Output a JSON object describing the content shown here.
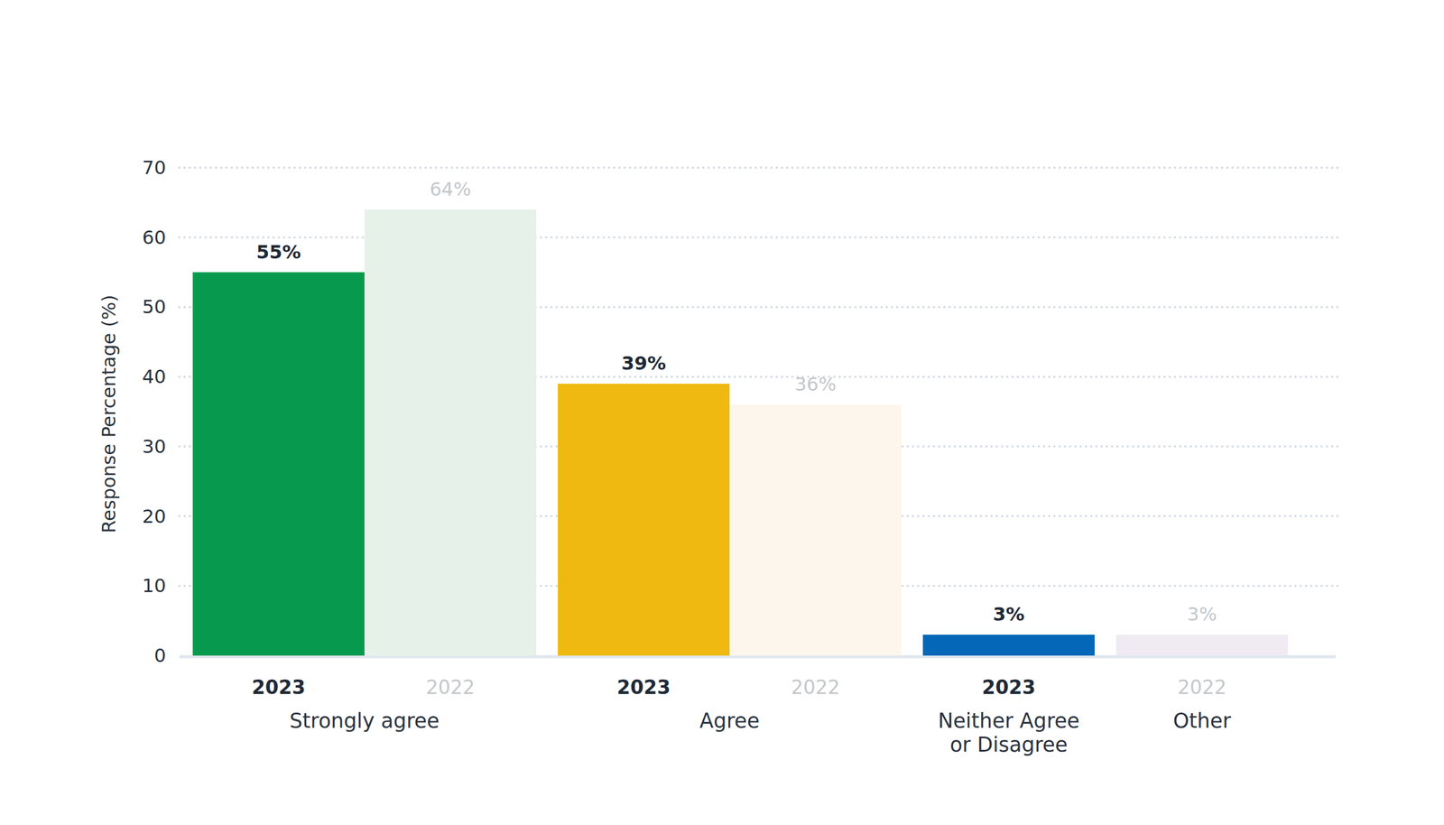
{
  "chart_data": {
    "type": "bar",
    "y_label": "Response Percentage (%)",
    "categories": [
      "2023",
      "2022",
      "2023",
      "2022",
      "2023",
      "2022"
    ],
    "group_labels": [
      "Strongly agree",
      "Strongly agree",
      "Agree",
      "Agree",
      "Neither Agree or Disagree",
      "Other"
    ],
    "values": [
      55,
      64,
      39,
      36,
      3,
      3
    ],
    "value_labels": [
      "55%",
      "64%",
      "39%",
      "36%",
      "3%",
      "3%"
    ],
    "colors": [
      "#079a4e",
      "#e6f2e9",
      "#f0b911",
      "#fdf6ec",
      "#0467b8",
      "#f0ebf3"
    ],
    "ylim": [
      0,
      70
    ],
    "yticks": [
      0,
      10,
      20,
      30,
      40,
      50,
      60,
      70
    ],
    "grid": true,
    "data_labels": true
  }
}
